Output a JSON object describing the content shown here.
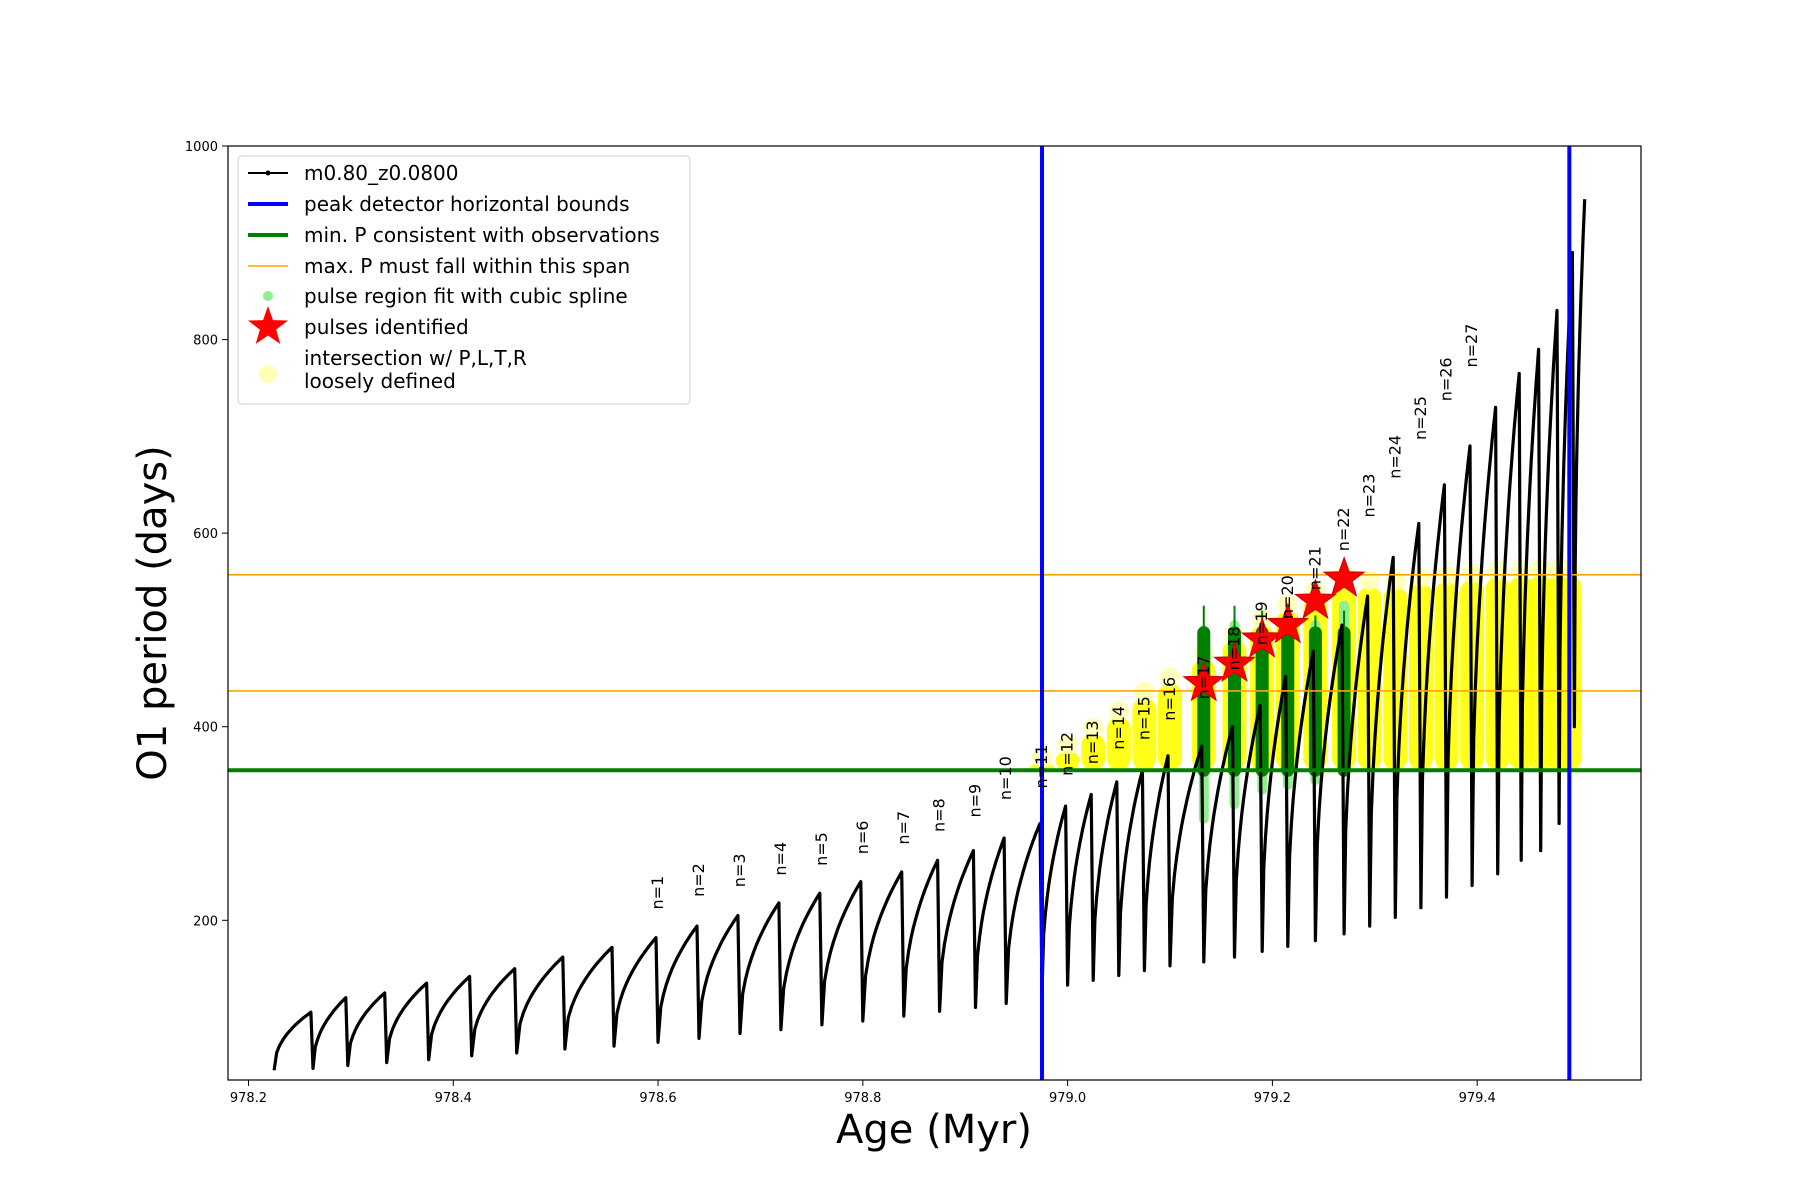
{
  "chart_data": {
    "type": "line",
    "xlabel": "Age (Myr)",
    "ylabel": "O1 period (days)",
    "xlim": [
      978.18,
      979.56
    ],
    "ylim": [
      35,
      1000
    ],
    "x_ticks": [
      978.2,
      978.4,
      978.6,
      978.8,
      979.0,
      979.2,
      979.4
    ],
    "x_tick_labels": [
      "978.2",
      "978.4",
      "978.6",
      "978.8",
      "979.0",
      "979.2",
      "979.4"
    ],
    "y_ticks": [
      200,
      400,
      600,
      800,
      1000
    ],
    "y_tick_labels": [
      "200",
      "400",
      "600",
      "800",
      "1000"
    ],
    "grid": false,
    "legend_position": "top-left",
    "legend": [
      {
        "key": "track",
        "label": "m0.80_z0.0800",
        "color": "#000000",
        "kind": "line-marker"
      },
      {
        "key": "bounds",
        "label": "peak detector horizontal bounds",
        "color": "#0000ff",
        "kind": "thick-line"
      },
      {
        "key": "minp",
        "label": "min. P consistent with observations",
        "color": "#008000",
        "kind": "thick-line"
      },
      {
        "key": "maxp",
        "label": "max. P must fall within this span",
        "color": "#ffa500",
        "kind": "thin-line"
      },
      {
        "key": "spline",
        "label": "pulse region fit with cubic spline",
        "color": "#90ee90",
        "kind": "dot"
      },
      {
        "key": "pulses",
        "label": "pulses identified",
        "color": "#ff0000",
        "kind": "star"
      },
      {
        "key": "intersection",
        "label": "intersection w/ P,L,T,R",
        "label2": "loosely defined",
        "color": "#ffffb3",
        "kind": "big-dot"
      }
    ],
    "vertical_bounds": [
      978.975,
      979.49
    ],
    "min_period": 355,
    "max_period_span": [
      437,
      557
    ],
    "pulses": {
      "age": [
        978.225,
        978.263,
        978.297,
        978.335,
        978.376,
        978.418,
        978.462,
        978.509,
        978.557,
        978.6,
        978.64,
        978.68,
        978.72,
        978.76,
        978.8,
        978.84,
        978.875,
        978.91,
        978.94,
        978.975,
        979.0,
        979.025,
        979.05,
        979.075,
        979.1,
        979.133,
        979.163,
        979.19,
        979.215,
        979.242,
        979.27,
        979.295,
        979.32,
        979.345,
        979.37,
        979.395,
        979.42,
        979.443,
        979.462,
        979.48,
        979.495
      ],
      "min_period": [
        45,
        47,
        50,
        53,
        56,
        60,
        63,
        67,
        70,
        74,
        78,
        83,
        87,
        92,
        96,
        101,
        106,
        110,
        114,
        128,
        133,
        138,
        143,
        148,
        153,
        157,
        162,
        168,
        173,
        179,
        186,
        194,
        203,
        213,
        224,
        236,
        248,
        262,
        272,
        300,
        400
      ],
      "peak_period": [
        105,
        120,
        125,
        135,
        142,
        150,
        162,
        172,
        182,
        194,
        205,
        218,
        228,
        240,
        250,
        262,
        272,
        285,
        300,
        318,
        330,
        343,
        355,
        370,
        380,
        400,
        422,
        452,
        478,
        505,
        535,
        575,
        610,
        650,
        690,
        730,
        765,
        790,
        830,
        890,
        945
      ]
    },
    "pulse_labels": {
      "text": [
        "n=1",
        "n=2",
        "n=3",
        "n=4",
        "n=5",
        "n=6",
        "n=7",
        "n=8",
        "n=9",
        "n=10",
        "n=11",
        "n=12",
        "n=13",
        "n=14",
        "n=15",
        "n=16",
        "n=17",
        "n=18",
        "n=19",
        "n=20",
        "n=21",
        "n=22",
        "n=23",
        "n=24",
        "n=25",
        "n=26",
        "n=27"
      ],
      "age": [
        978.6,
        978.64,
        978.68,
        978.72,
        978.76,
        978.8,
        978.84,
        978.875,
        978.91,
        978.94,
        978.975,
        979.0,
        979.025,
        979.05,
        979.075,
        979.1,
        979.133,
        979.163,
        979.19,
        979.215,
        979.242,
        979.27,
        979.295,
        979.32,
        979.345,
        979.37,
        979.395
      ],
      "period": [
        205,
        218,
        228,
        240,
        250,
        262,
        272,
        285,
        300,
        318,
        330,
        343,
        355,
        370,
        380,
        400,
        422,
        452,
        478,
        505,
        535,
        575,
        610,
        650,
        690,
        730,
        765
      ]
    },
    "spline_regions": {
      "age": [
        979.133,
        979.163,
        979.19,
        979.215,
        979.242,
        979.27
      ],
      "period_low": [
        305,
        320,
        335,
        340,
        345,
        360
      ],
      "period_high": [
        500,
        505,
        500,
        500,
        505,
        525
      ]
    },
    "green_bars": {
      "age": [
        979.133,
        979.163,
        979.19,
        979.215,
        979.242,
        979.27
      ],
      "period_low": [
        355,
        355,
        355,
        355,
        355,
        355
      ],
      "period_high": [
        497,
        497,
        497,
        497,
        497,
        497
      ],
      "whisker_top": [
        525,
        525,
        520,
        515,
        515,
        520
      ]
    },
    "identified_pulses": {
      "age": [
        979.133,
        979.163,
        979.19,
        979.215,
        979.242,
        979.27
      ],
      "period": [
        445,
        465,
        490,
        505,
        530,
        553
      ]
    },
    "intersection_bands": {
      "age": [
        978.975,
        979.0,
        979.025,
        979.05,
        979.075,
        979.1,
        979.133,
        979.163,
        979.19,
        979.215,
        979.242,
        979.27,
        979.295,
        979.32,
        979.345,
        979.37,
        979.395,
        979.42,
        979.443,
        979.462,
        979.48,
        979.49
      ],
      "period_low": [
        355,
        355,
        355,
        355,
        355,
        355,
        355,
        355,
        355,
        355,
        355,
        355,
        355,
        355,
        355,
        355,
        355,
        355,
        355,
        355,
        355,
        355
      ],
      "period_high": [
        362,
        375,
        393,
        410,
        430,
        445,
        470,
        490,
        505,
        520,
        535,
        550,
        545,
        545,
        548,
        550,
        552,
        555,
        556,
        557,
        557,
        557
      ]
    }
  }
}
